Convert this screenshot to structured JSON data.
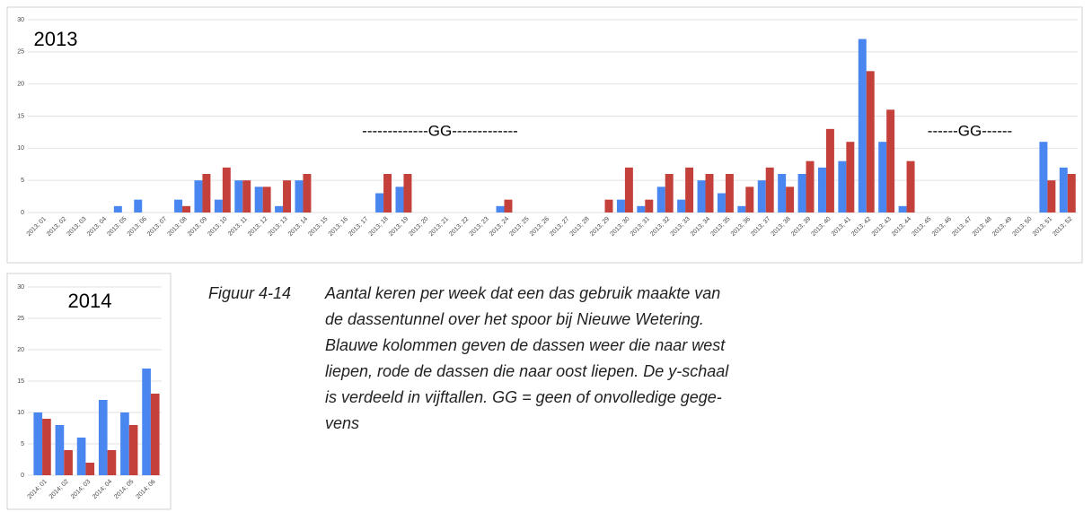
{
  "chart_data": [
    {
      "type": "bar",
      "title": "2013",
      "categories": [
        "2013; 01",
        "2013; 02",
        "2013; 03",
        "2013; 04",
        "2013; 05",
        "2013; 06",
        "2013; 07",
        "2013; 08",
        "2013; 09",
        "2013; 10",
        "2013; 11",
        "2013; 12",
        "2013; 13",
        "2013; 14",
        "2013; 15",
        "2013; 16",
        "2013; 17",
        "2013; 18",
        "2013; 19",
        "2013; 20",
        "2013; 21",
        "2013; 22",
        "2013; 23",
        "2013; 24",
        "2013; 25",
        "2013; 26",
        "2013; 27",
        "2013; 28",
        "2013; 29",
        "2013; 30",
        "2013; 31",
        "2013; 32",
        "2013; 33",
        "2013; 34",
        "2013; 35",
        "2013; 36",
        "2013; 37",
        "2013; 38",
        "2013; 39",
        "2013; 40",
        "2013; 41",
        "2013; 42",
        "2013; 43",
        "2013; 44",
        "2013; 45",
        "2013; 46",
        "2013; 47",
        "2013; 48",
        "2013; 49",
        "2013; 50",
        "2013; 51",
        "2013; 52"
      ],
      "series": [
        {
          "color": "#4a86f0",
          "values": [
            0,
            0,
            0,
            0,
            1,
            2,
            0,
            2,
            5,
            2,
            5,
            4,
            1,
            5,
            0,
            0,
            0,
            3,
            4,
            0,
            0,
            0,
            0,
            1,
            0,
            0,
            0,
            0,
            0,
            2,
            1,
            4,
            2,
            5,
            3,
            1,
            5,
            6,
            6,
            7,
            8,
            27,
            11,
            1,
            0,
            0,
            0,
            0,
            0,
            0,
            11,
            7
          ]
        },
        {
          "color": "#c4403a",
          "values": [
            0,
            0,
            0,
            0,
            0,
            0,
            0,
            1,
            6,
            7,
            5,
            4,
            5,
            6,
            0,
            0,
            0,
            6,
            6,
            0,
            0,
            0,
            0,
            2,
            0,
            0,
            0,
            0,
            2,
            7,
            2,
            6,
            7,
            6,
            6,
            4,
            7,
            4,
            8,
            13,
            11,
            22,
            16,
            8,
            0,
            0,
            0,
            0,
            0,
            0,
            5,
            6
          ]
        }
      ],
      "annotations": [
        "-------------GG-------------",
        "------GG------"
      ],
      "ylim": [
        0,
        30
      ],
      "yticks": [
        0,
        5,
        10,
        15,
        20,
        25,
        30
      ],
      "grid": true
    },
    {
      "type": "bar",
      "title": "2014",
      "categories": [
        "2014; 01",
        "2014; 02",
        "2014; 03",
        "2014; 04",
        "2014; 05",
        "2014; 06"
      ],
      "series": [
        {
          "color": "#4a86f0",
          "values": [
            10,
            8,
            6,
            12,
            10,
            17
          ]
        },
        {
          "color": "#c4403a",
          "values": [
            9,
            4,
            2,
            4,
            8,
            13
          ]
        }
      ],
      "ylim": [
        0,
        30
      ],
      "yticks": [
        0,
        5,
        10,
        15,
        20,
        25,
        30
      ],
      "grid": true
    }
  ],
  "caption": {
    "label": "Figuur 4-14",
    "lines": [
      "Aantal keren per week dat een das gebruik maakte van",
      "de dassentunnel over het spoor bij Nieuwe Wetering.",
      "Blauwe kolommen geven de dassen weer die naar west",
      "liepen, rode de dassen die naar oost liepen. De y-schaal",
      "is verdeeld in vijftallen. GG = geen of onvolledige gege-",
      "vens"
    ]
  }
}
